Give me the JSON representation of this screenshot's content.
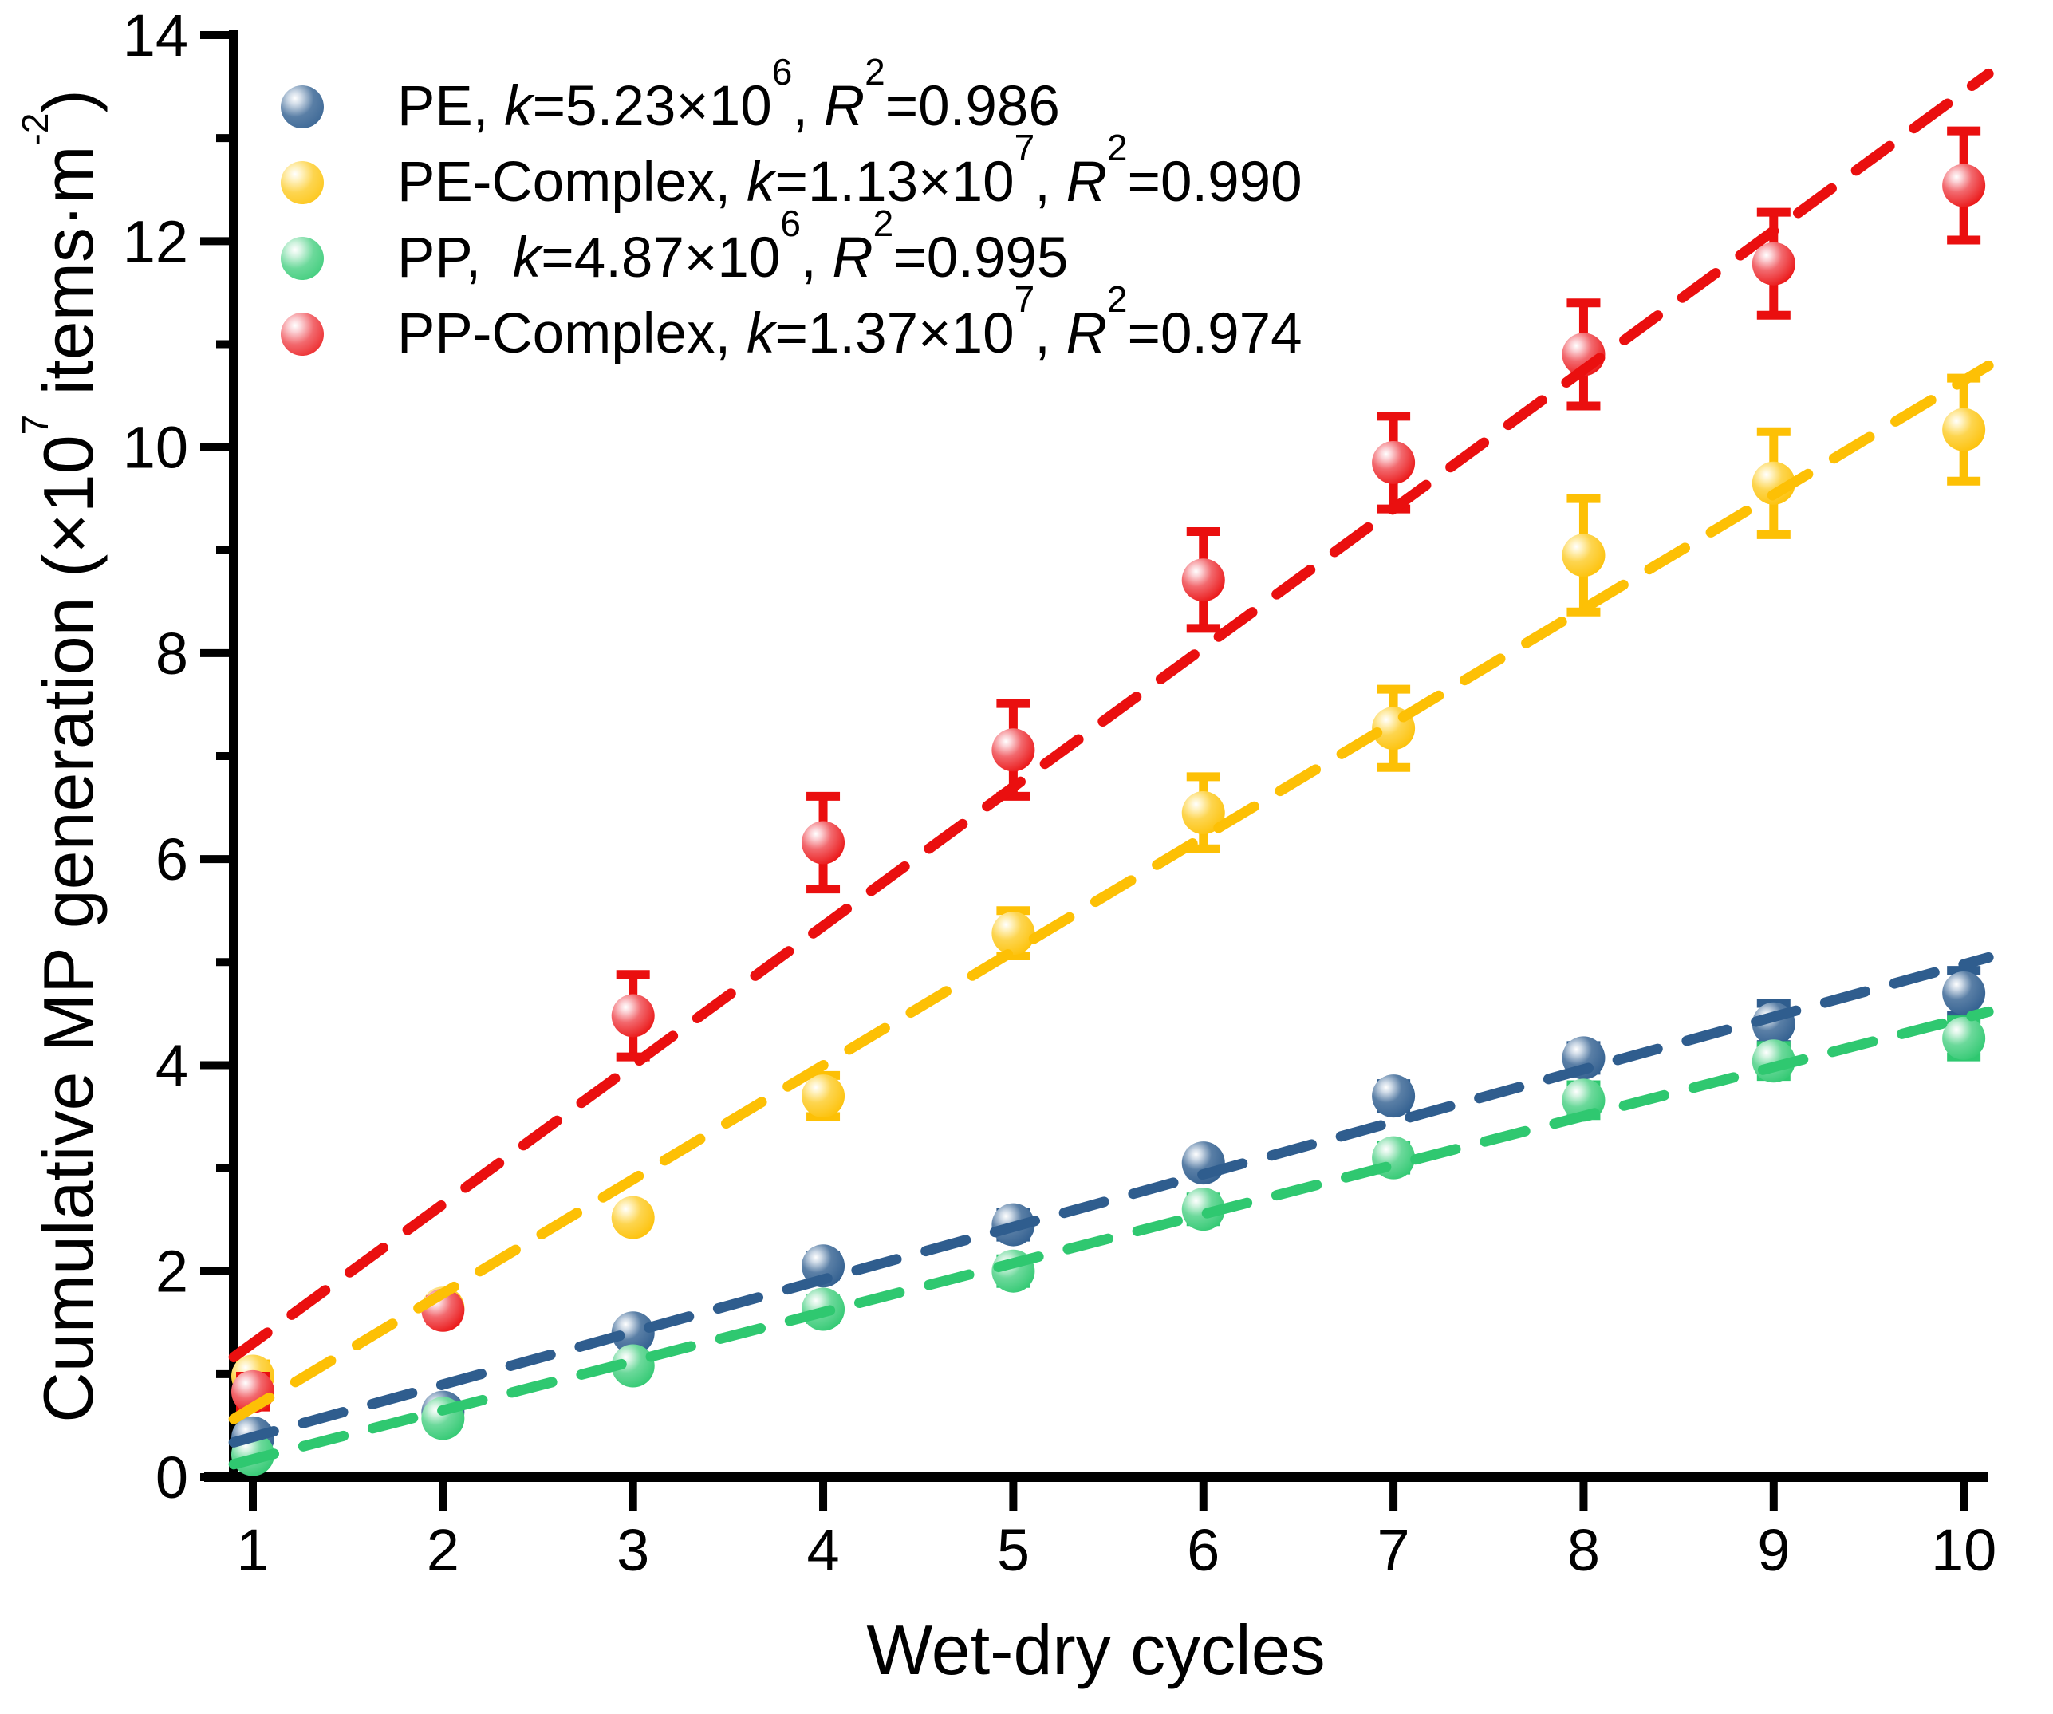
{
  "chart_data": {
    "type": "scatter",
    "title": "",
    "xlabel": "Wet-dry cycles",
    "ylabel_parts": [
      {
        "text": "Cumulative MP generation (×10"
      },
      {
        "sup": "7"
      },
      {
        "text": " items·m"
      },
      {
        "sup": "-2"
      },
      {
        "text": ")"
      }
    ],
    "x": [
      1,
      2,
      3,
      4,
      5,
      6,
      7,
      8,
      9,
      10
    ],
    "xlim": [
      0.75,
      10.15
    ],
    "ylim": [
      0,
      14
    ],
    "y_major_ticks": [
      0,
      2,
      4,
      6,
      8,
      10,
      12,
      14
    ],
    "y_minor_ticks": [
      1,
      3,
      5,
      7,
      9,
      11,
      13
    ],
    "grid": false,
    "legend_position": "top-left-inside",
    "legend_format": {
      "k_label": "k",
      "equals": "=",
      "times_ten": "×10",
      "comma": ", ",
      "r_label": "R",
      "r_exponent": "2"
    },
    "series": [
      {
        "id": "PE",
        "legend_prefix": "PE, ",
        "k_mantissa": "5.23",
        "k_exponent": "6",
        "r_squared": "0.986",
        "color": "#2f5d8e",
        "gradient": [
          "#ffffff",
          "#cdd9e6",
          "#5a7fa6",
          "#2f5d8e"
        ],
        "values": [
          0.38,
          0.63,
          1.4,
          2.05,
          2.45,
          3.05,
          3.7,
          4.07,
          4.4,
          4.7
        ],
        "errors": [
          0.06,
          0.07,
          0.08,
          0.1,
          0.12,
          0.1,
          0.12,
          0.12,
          0.2,
          0.22
        ],
        "fit_line": {
          "slope": 0.51,
          "intercept": -0.121
        }
      },
      {
        "id": "PE-Complex",
        "legend_prefix": "PE-Complex, ",
        "k_mantissa": "1.13",
        "k_exponent": "7",
        "r_squared": "0.990",
        "color": "#fdc005",
        "gradient": [
          "#ffffff",
          "#fff2c2",
          "#fdd54f",
          "#fdc005"
        ],
        "values": [
          0.98,
          1.64,
          2.52,
          3.7,
          5.28,
          6.45,
          7.27,
          8.95,
          9.65,
          10.17
        ],
        "errors": [
          0.12,
          0.09,
          0.08,
          0.2,
          0.22,
          0.35,
          0.38,
          0.55,
          0.5,
          0.5
        ],
        "fit_line": {
          "slope": 1.108,
          "intercept": -0.433
        }
      },
      {
        "id": "PP",
        "legend_prefix": "PP,  ",
        "k_mantissa": "4.87",
        "k_exponent": "6",
        "r_squared": "0.995",
        "color": "#2fc870",
        "gradient": [
          "#ffffff",
          "#d2f3e0",
          "#6cd99b",
          "#2fc870"
        ],
        "values": [
          0.22,
          0.57,
          1.08,
          1.63,
          2.0,
          2.6,
          3.1,
          3.66,
          4.04,
          4.26
        ],
        "errors": [
          0.06,
          0.07,
          0.08,
          0.1,
          0.12,
          0.12,
          0.12,
          0.15,
          0.15,
          0.18
        ],
        "fit_line": {
          "slope": 0.476,
          "intercept": -0.303
        }
      },
      {
        "id": "PP-Complex",
        "legend_prefix": "PP-Complex, ",
        "k_mantissa": "1.37",
        "k_exponent": "7",
        "r_squared": "0.974",
        "color": "#ea0f0f",
        "gradient": [
          "#ffffff",
          "#fbd0d4",
          "#f2696e",
          "#ea0f0f"
        ],
        "values": [
          0.83,
          1.62,
          4.48,
          6.16,
          7.06,
          8.71,
          9.85,
          10.9,
          11.78,
          12.54
        ],
        "errors": [
          0.15,
          0.1,
          0.4,
          0.45,
          0.45,
          0.47,
          0.45,
          0.5,
          0.5,
          0.53
        ],
        "fit_line": {
          "slope": 1.35,
          "intercept": -0.05
        }
      }
    ],
    "legend_order": [
      "PE",
      "PE-Complex",
      "PP",
      "PP-Complex"
    ],
    "draw_order": [
      "PE",
      "PP",
      "PE-Complex",
      "PP-Complex"
    ]
  }
}
